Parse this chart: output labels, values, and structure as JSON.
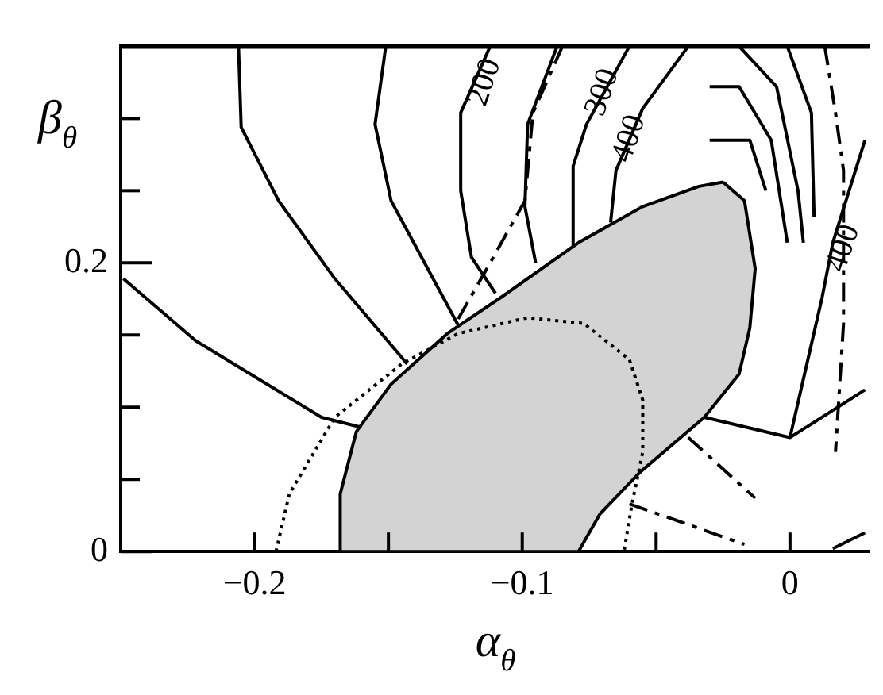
{
  "chart_data": {
    "type": "line",
    "xlabel": "α$_{θ}$",
    "ylabel": "β$_{θ}$",
    "xlim": [
      -0.25,
      0.03
    ],
    "ylim": [
      0,
      0.35
    ],
    "xticks": [
      -0.2,
      {
        "value": -0.15,
        "label": null
      },
      -0.1,
      {
        "value": -0.05,
        "label": null
      },
      0
    ],
    "yticks": [
      0,
      {
        "value": 0.05,
        "label": null
      },
      {
        "value": 0.1,
        "label": null
      },
      {
        "value": 0.15,
        "label": null
      },
      0.2,
      {
        "value": 0.25,
        "label": null
      },
      {
        "value": 0.3,
        "label": null
      }
    ],
    "grid": false,
    "legend": false,
    "marker": "none",
    "series": [
      {
        "type": "area",
        "color": "#d3d3d3",
        "x": [
          -0.025,
          -0.017,
          -0.013,
          -0.015,
          -0.019,
          -0.032,
          -0.056,
          -0.071,
          -0.079,
          -0.168,
          -0.168,
          -0.162,
          -0.149,
          -0.128,
          -0.108,
          -0.079,
          -0.055,
          -0.034,
          -0.025
        ],
        "values": [
          0.256,
          0.243,
          0.196,
          0.155,
          0.123,
          0.093,
          0.055,
          0.026,
          0,
          0,
          0.04,
          0.083,
          0.116,
          0.151,
          0.176,
          0.214,
          0.239,
          0.253,
          0.256
        ]
      },
      {
        "color": "#000000",
        "line_style": "dotted",
        "x": [
          -0.192,
          -0.187,
          -0.17,
          -0.145,
          -0.124,
          -0.098,
          -0.077,
          -0.06,
          -0.055,
          -0.055,
          -0.059,
          -0.062
        ],
        "values": [
          0,
          0.04,
          0.093,
          0.13,
          0.151,
          0.162,
          0.158,
          0.133,
          0.105,
          0.069,
          0.033,
          0
        ]
      },
      {
        "color": "#000000",
        "line_style": "solid",
        "x": [
          -0.206,
          -0.205,
          -0.191,
          -0.17,
          -0.143
        ],
        "values": [
          0.35,
          0.294,
          0.243,
          0.189,
          0.13
        ]
      },
      {
        "color": "#000000",
        "line_style": "solid",
        "x": [
          -0.249,
          -0.222,
          -0.175,
          -0.16
        ],
        "values": [
          0.189,
          0.146,
          0.093,
          0.086
        ]
      },
      {
        "color": "#000000",
        "line_style": "solid",
        "x": [
          -0.151,
          -0.155,
          -0.149,
          -0.124
        ],
        "values": [
          0.35,
          0.296,
          0.243,
          0.157
        ]
      },
      {
        "color": "#000000",
        "line_style": "solid",
        "x": [
          -0.112,
          -0.123,
          -0.123,
          -0.119,
          -0.11
        ],
        "values": [
          0.35,
          0.304,
          0.25,
          0.204,
          0.179
        ]
      },
      {
        "color": "#000000",
        "line_style": "dashed",
        "x": [
          -0.085,
          -0.096,
          -0.099,
          -0.112,
          -0.124
        ],
        "values": [
          0.35,
          0.304,
          0.243,
          0.2,
          0.161
        ]
      },
      {
        "color": "#000000",
        "line_style": "solid",
        "x": [
          -0.087,
          -0.098,
          -0.099,
          -0.095
        ],
        "values": [
          0.35,
          0.296,
          0.239,
          0.2
        ]
      },
      {
        "color": "#000000",
        "line_style": "solid",
        "x": [
          -0.06,
          -0.076,
          -0.081,
          -0.081
        ],
        "values": [
          0.35,
          0.296,
          0.267,
          0.211
        ]
      },
      {
        "color": "#000000",
        "line_style": "solid",
        "x": [
          -0.038,
          -0.055,
          -0.065,
          -0.067
        ],
        "values": [
          0.35,
          0.307,
          0.264,
          0.228
        ]
      },
      {
        "color": "#000000",
        "line_style": "solid",
        "x": [
          -0.03,
          -0.019,
          -0.007,
          -0.001
        ],
        "values": [
          0.322,
          0.322,
          0.285,
          0.214
        ]
      },
      {
        "color": "#000000",
        "line_style": "solid",
        "x": [
          -0.03,
          -0.015,
          -0.009
        ],
        "values": [
          0.285,
          0.285,
          0.25
        ]
      },
      {
        "color": "#000000",
        "line_style": "solid",
        "x": [
          -0.019,
          -0.005,
          0.003,
          0.005
        ],
        "values": [
          0.35,
          0.322,
          0.25,
          0.214
        ]
      },
      {
        "color": "#000000",
        "line_style": "solid",
        "x": [
          -0.001,
          0.008,
          0.009
        ],
        "values": [
          0.35,
          0.304,
          0.232
        ]
      },
      {
        "color": "#000000",
        "line_style": "dashed",
        "x": [
          0.013,
          0.017,
          0.02,
          0.02,
          0.017
        ],
        "values": [
          0.35,
          0.304,
          0.264,
          0.158,
          0.069
        ]
      },
      {
        "color": "#000000",
        "line_style": "solid",
        "x": [
          0.028,
          0.016,
          0.012,
          0
        ],
        "values": [
          0.285,
          0.214,
          0.176,
          0.079
        ]
      },
      {
        "color": "#000000",
        "line_style": "solid",
        "x": [
          -0.032,
          0,
          0.028
        ],
        "values": [
          0.093,
          0.079,
          0.112
        ]
      },
      {
        "color": "#000000",
        "line_style": "dashed",
        "x": [
          -0.06,
          -0.017
        ],
        "values": [
          0.033,
          0.005
        ]
      },
      {
        "color": "#000000",
        "line_style": "dashed",
        "x": [
          -0.038,
          -0.013
        ],
        "values": [
          0.079,
          0.037
        ]
      },
      {
        "color": "#000000",
        "line_style": "solid",
        "x": [
          0.016,
          0.028
        ],
        "values": [
          0.002,
          0.013
        ]
      }
    ],
    "annotations": [
      {
        "text": "200",
        "x": -0.114,
        "y": 0.325
      },
      {
        "text": "300",
        "x": -0.07,
        "y": 0.318
      },
      {
        "text": "400",
        "x": -0.06,
        "y": 0.286
      },
      {
        "text": "400",
        "x": 0.02,
        "y": 0.21
      }
    ]
  }
}
